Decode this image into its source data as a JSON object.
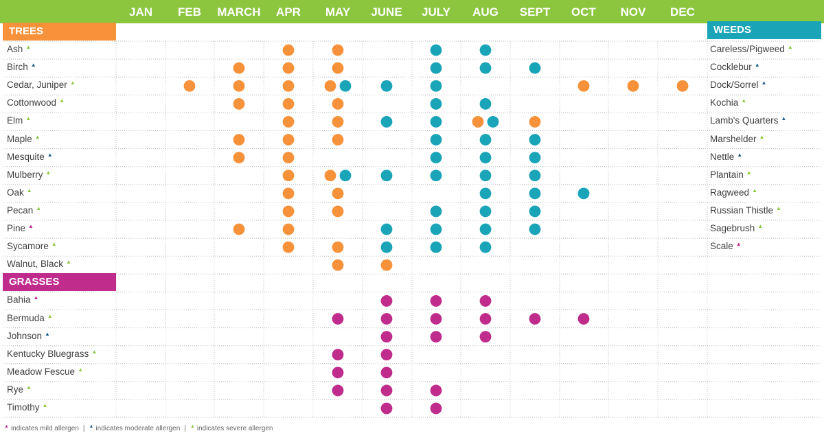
{
  "chart_data": {
    "type": "table",
    "months": [
      "JAN",
      "FEB",
      "MARCH",
      "APR",
      "MAY",
      "JUNE",
      "JULY",
      "AUG",
      "SEPT",
      "OCT",
      "NOV",
      "DEC"
    ],
    "colors": {
      "month_bar": "#8cc63f",
      "trees": "#f7923a",
      "weeds": "#1aa4b8",
      "grasses": "#bf2c8c",
      "mild": "#bf2c8c",
      "moderate": "#1d5b86",
      "severe": "#8cc63f"
    },
    "sections": {
      "trees": {
        "label": "TREES",
        "rows": [
          {
            "name": "Ash",
            "allergen": "severe"
          },
          {
            "name": "Birch",
            "allergen": "moderate"
          },
          {
            "name": "Cedar, Juniper",
            "allergen": "severe"
          },
          {
            "name": "Cottonwood",
            "allergen": "severe"
          },
          {
            "name": "Elm",
            "allergen": "severe"
          },
          {
            "name": "Maple",
            "allergen": "severe"
          },
          {
            "name": "Mesquite",
            "allergen": "moderate"
          },
          {
            "name": "Mulberry",
            "allergen": "severe"
          },
          {
            "name": "Oak",
            "allergen": "severe"
          },
          {
            "name": "Pecan",
            "allergen": "severe"
          },
          {
            "name": "Pine",
            "allergen": "mild"
          },
          {
            "name": "Sycamore",
            "allergen": "severe"
          },
          {
            "name": "Walnut, Black",
            "allergen": "severe"
          }
        ]
      },
      "weeds": {
        "label": "WEEDS",
        "rows": [
          {
            "name": "Careless/Pigweed",
            "allergen": "severe"
          },
          {
            "name": "Cocklebur",
            "allergen": "moderate"
          },
          {
            "name": "Dock/Sorrel",
            "allergen": "moderate"
          },
          {
            "name": "Kochia",
            "allergen": "severe"
          },
          {
            "name": "Lamb's Quarters",
            "allergen": "moderate"
          },
          {
            "name": "Marshelder",
            "allergen": "severe"
          },
          {
            "name": "Nettle",
            "allergen": "moderate"
          },
          {
            "name": "Plantain",
            "allergen": "severe"
          },
          {
            "name": "Ragweed",
            "allergen": "severe"
          },
          {
            "name": "Russian Thistle",
            "allergen": "severe"
          },
          {
            "name": "Sagebrush",
            "allergen": "severe"
          },
          {
            "name": "Scale",
            "allergen": "mild"
          }
        ]
      },
      "grasses": {
        "label": "GRASSES",
        "rows": [
          {
            "name": "Bahia",
            "allergen": "mild"
          },
          {
            "name": "Bermuda",
            "allergen": "severe"
          },
          {
            "name": "Johnson",
            "allergen": "moderate"
          },
          {
            "name": "Kentucky Bluegrass",
            "allergen": "severe"
          },
          {
            "name": "Meadow Fescue",
            "allergen": "severe"
          },
          {
            "name": "Rye",
            "allergen": "severe"
          },
          {
            "name": "Timothy",
            "allergen": "severe"
          }
        ]
      }
    },
    "dots": [
      {
        "row": 0,
        "month": "APR",
        "type": "tree"
      },
      {
        "row": 0,
        "month": "MAY",
        "type": "tree"
      },
      {
        "row": 0,
        "month": "JULY",
        "type": "weed"
      },
      {
        "row": 0,
        "month": "AUG",
        "type": "weed"
      },
      {
        "row": 1,
        "month": "MARCH",
        "type": "tree"
      },
      {
        "row": 1,
        "month": "APR",
        "type": "tree"
      },
      {
        "row": 1,
        "month": "MAY",
        "type": "tree"
      },
      {
        "row": 1,
        "month": "JULY",
        "type": "weed"
      },
      {
        "row": 1,
        "month": "AUG",
        "type": "weed"
      },
      {
        "row": 1,
        "month": "SEPT",
        "type": "weed"
      },
      {
        "row": 2,
        "month": "FEB",
        "type": "tree"
      },
      {
        "row": 2,
        "month": "MARCH",
        "type": "tree"
      },
      {
        "row": 2,
        "month": "APR",
        "type": "tree"
      },
      {
        "row": 2,
        "month": "MAY",
        "type": "tree",
        "pair": "left"
      },
      {
        "row": 2,
        "month": "MAY",
        "type": "weed",
        "pair": "right"
      },
      {
        "row": 2,
        "month": "JUNE",
        "type": "weed"
      },
      {
        "row": 2,
        "month": "JULY",
        "type": "weed"
      },
      {
        "row": 2,
        "month": "OCT",
        "type": "tree"
      },
      {
        "row": 2,
        "month": "NOV",
        "type": "tree"
      },
      {
        "row": 2,
        "month": "DEC",
        "type": "tree"
      },
      {
        "row": 3,
        "month": "MARCH",
        "type": "tree"
      },
      {
        "row": 3,
        "month": "APR",
        "type": "tree"
      },
      {
        "row": 3,
        "month": "MAY",
        "type": "tree"
      },
      {
        "row": 3,
        "month": "JULY",
        "type": "weed"
      },
      {
        "row": 3,
        "month": "AUG",
        "type": "weed"
      },
      {
        "row": 4,
        "month": "APR",
        "type": "tree"
      },
      {
        "row": 4,
        "month": "MAY",
        "type": "tree"
      },
      {
        "row": 4,
        "month": "JUNE",
        "type": "weed"
      },
      {
        "row": 4,
        "month": "JULY",
        "type": "weed"
      },
      {
        "row": 4,
        "month": "AUG",
        "type": "tree",
        "pair": "left"
      },
      {
        "row": 4,
        "month": "AUG",
        "type": "weed",
        "pair": "right"
      },
      {
        "row": 4,
        "month": "SEPT",
        "type": "tree"
      },
      {
        "row": 5,
        "month": "MARCH",
        "type": "tree"
      },
      {
        "row": 5,
        "month": "APR",
        "type": "tree"
      },
      {
        "row": 5,
        "month": "MAY",
        "type": "tree"
      },
      {
        "row": 5,
        "month": "JULY",
        "type": "weed"
      },
      {
        "row": 5,
        "month": "AUG",
        "type": "weed"
      },
      {
        "row": 5,
        "month": "SEPT",
        "type": "weed"
      },
      {
        "row": 6,
        "month": "MARCH",
        "type": "tree"
      },
      {
        "row": 6,
        "month": "APR",
        "type": "tree"
      },
      {
        "row": 6,
        "month": "JULY",
        "type": "weed"
      },
      {
        "row": 6,
        "month": "AUG",
        "type": "weed"
      },
      {
        "row": 6,
        "month": "SEPT",
        "type": "weed"
      },
      {
        "row": 7,
        "month": "APR",
        "type": "tree"
      },
      {
        "row": 7,
        "month": "MAY",
        "type": "tree",
        "pair": "left"
      },
      {
        "row": 7,
        "month": "MAY",
        "type": "weed",
        "pair": "right"
      },
      {
        "row": 7,
        "month": "JUNE",
        "type": "weed"
      },
      {
        "row": 7,
        "month": "JULY",
        "type": "weed"
      },
      {
        "row": 7,
        "month": "AUG",
        "type": "weed"
      },
      {
        "row": 7,
        "month": "SEPT",
        "type": "weed"
      },
      {
        "row": 8,
        "month": "APR",
        "type": "tree"
      },
      {
        "row": 8,
        "month": "MAY",
        "type": "tree"
      },
      {
        "row": 8,
        "month": "AUG",
        "type": "weed"
      },
      {
        "row": 8,
        "month": "SEPT",
        "type": "weed"
      },
      {
        "row": 8,
        "month": "OCT",
        "type": "weed"
      },
      {
        "row": 9,
        "month": "APR",
        "type": "tree"
      },
      {
        "row": 9,
        "month": "MAY",
        "type": "tree"
      },
      {
        "row": 9,
        "month": "JULY",
        "type": "weed"
      },
      {
        "row": 9,
        "month": "AUG",
        "type": "weed"
      },
      {
        "row": 9,
        "month": "SEPT",
        "type": "weed"
      },
      {
        "row": 10,
        "month": "MARCH",
        "type": "tree"
      },
      {
        "row": 10,
        "month": "APR",
        "type": "tree"
      },
      {
        "row": 10,
        "month": "JUNE",
        "type": "weed"
      },
      {
        "row": 10,
        "month": "JULY",
        "type": "weed"
      },
      {
        "row": 10,
        "month": "AUG",
        "type": "weed"
      },
      {
        "row": 10,
        "month": "SEPT",
        "type": "weed"
      },
      {
        "row": 11,
        "month": "APR",
        "type": "tree"
      },
      {
        "row": 11,
        "month": "MAY",
        "type": "tree"
      },
      {
        "row": 11,
        "month": "JUNE",
        "type": "weed"
      },
      {
        "row": 11,
        "month": "JULY",
        "type": "weed"
      },
      {
        "row": 11,
        "month": "AUG",
        "type": "weed"
      },
      {
        "row": 12,
        "month": "MAY",
        "type": "tree"
      },
      {
        "row": 12,
        "month": "JUNE",
        "type": "tree"
      },
      {
        "row": 14,
        "month": "JUNE",
        "type": "grass"
      },
      {
        "row": 14,
        "month": "JULY",
        "type": "grass"
      },
      {
        "row": 14,
        "month": "AUG",
        "type": "grass"
      },
      {
        "row": 15,
        "month": "MAY",
        "type": "grass"
      },
      {
        "row": 15,
        "month": "JUNE",
        "type": "grass"
      },
      {
        "row": 15,
        "month": "JULY",
        "type": "grass"
      },
      {
        "row": 15,
        "month": "AUG",
        "type": "grass"
      },
      {
        "row": 15,
        "month": "SEPT",
        "type": "grass"
      },
      {
        "row": 15,
        "month": "OCT",
        "type": "grass"
      },
      {
        "row": 16,
        "month": "JUNE",
        "type": "grass"
      },
      {
        "row": 16,
        "month": "JULY",
        "type": "grass"
      },
      {
        "row": 16,
        "month": "AUG",
        "type": "grass"
      },
      {
        "row": 17,
        "month": "MAY",
        "type": "grass"
      },
      {
        "row": 17,
        "month": "JUNE",
        "type": "grass"
      },
      {
        "row": 18,
        "month": "MAY",
        "type": "grass"
      },
      {
        "row": 18,
        "month": "JUNE",
        "type": "grass"
      },
      {
        "row": 19,
        "month": "MAY",
        "type": "grass"
      },
      {
        "row": 19,
        "month": "JUNE",
        "type": "grass"
      },
      {
        "row": 19,
        "month": "JULY",
        "type": "grass"
      },
      {
        "row": 20,
        "month": "JUNE",
        "type": "grass"
      },
      {
        "row": 20,
        "month": "JULY",
        "type": "grass"
      }
    ],
    "legend": {
      "mild": "indicates mild allergen",
      "moderate": "indicates moderate allergen",
      "severe": "indicates severe allergen",
      "separator": "|"
    }
  }
}
